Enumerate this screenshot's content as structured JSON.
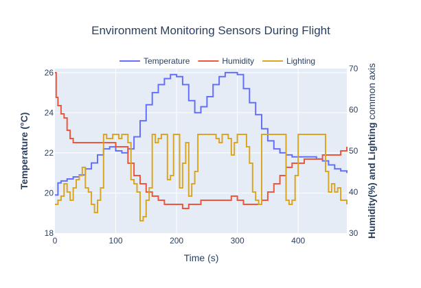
{
  "chart_data": {
    "type": "line",
    "title": "Environment Monitoring Sensors During Flight",
    "xlabel": "Time (s)",
    "ylabel_left": "Temperature (°C)",
    "ylabel_right_bold": "Humidity(%) and Lighting",
    "ylabel_right_normal": " common axis",
    "xlim": [
      0,
      480
    ],
    "ylim_left": [
      18,
      26.2
    ],
    "ylim_right": [
      30,
      70
    ],
    "x_ticks": [
      0,
      100,
      200,
      300,
      400
    ],
    "y_left_ticks": [
      18,
      20,
      22,
      24,
      26
    ],
    "y_right_ticks": [
      30,
      40,
      50,
      60,
      70
    ],
    "grid": true,
    "legend_position": "top",
    "series": [
      {
        "name": "Temperature",
        "axis": "left",
        "color": "#636efa",
        "x": [
          0,
          5,
          10,
          20,
          30,
          40,
          50,
          60,
          70,
          80,
          90,
          100,
          110,
          120,
          130,
          140,
          150,
          160,
          170,
          180,
          190,
          200,
          210,
          220,
          230,
          240,
          250,
          260,
          270,
          280,
          290,
          300,
          310,
          320,
          330,
          340,
          350,
          360,
          370,
          380,
          390,
          400,
          410,
          420,
          430,
          440,
          450,
          460,
          470,
          480
        ],
        "y": [
          19.9,
          20.5,
          20.6,
          20.7,
          20.8,
          20.9,
          21.2,
          21.5,
          21.9,
          22.2,
          22.3,
          22.1,
          22.0,
          22.2,
          22.8,
          23.6,
          24.4,
          25.0,
          25.4,
          25.7,
          25.9,
          25.8,
          25.4,
          24.6,
          24.0,
          24.3,
          24.8,
          25.4,
          25.8,
          26.0,
          26.0,
          25.9,
          25.2,
          24.5,
          23.9,
          23.2,
          22.6,
          22.2,
          22.0,
          21.9,
          21.8,
          21.8,
          21.8,
          21.8,
          21.7,
          21.6,
          21.4,
          21.2,
          21.1,
          21.0
        ]
      },
      {
        "name": "Humidity",
        "axis": "right",
        "color": "#ef553b",
        "x": [
          0,
          2,
          5,
          10,
          15,
          20,
          25,
          30,
          40,
          50,
          60,
          70,
          80,
          90,
          100,
          110,
          120,
          130,
          140,
          150,
          160,
          170,
          180,
          190,
          200,
          210,
          220,
          230,
          240,
          250,
          260,
          270,
          280,
          290,
          300,
          310,
          320,
          330,
          340,
          350,
          360,
          370,
          380,
          390,
          400,
          410,
          420,
          430,
          440,
          450,
          460,
          470,
          480
        ],
        "y": [
          69,
          63,
          61,
          59,
          58,
          55,
          53,
          52,
          52,
          52,
          52,
          52,
          52,
          52,
          51,
          51,
          47,
          44,
          42,
          40,
          39,
          38,
          37,
          37,
          37,
          36,
          37,
          37,
          38,
          38,
          38,
          38,
          38,
          39,
          38,
          37,
          37,
          37,
          38,
          40,
          42,
          44,
          46,
          47,
          47,
          48,
          48,
          48,
          49,
          49,
          49,
          50,
          51
        ]
      },
      {
        "name": "Lighting",
        "axis": "right",
        "color": "#daa520",
        "x": [
          0,
          5,
          10,
          15,
          20,
          25,
          30,
          35,
          40,
          45,
          50,
          55,
          60,
          65,
          70,
          75,
          80,
          85,
          90,
          95,
          100,
          105,
          110,
          115,
          120,
          125,
          130,
          135,
          140,
          145,
          150,
          155,
          160,
          165,
          170,
          175,
          180,
          185,
          190,
          195,
          200,
          205,
          210,
          215,
          220,
          225,
          230,
          235,
          240,
          245,
          250,
          255,
          260,
          265,
          270,
          275,
          280,
          285,
          290,
          295,
          300,
          305,
          310,
          315,
          320,
          325,
          330,
          335,
          340,
          345,
          350,
          355,
          360,
          365,
          370,
          375,
          380,
          385,
          390,
          395,
          400,
          405,
          410,
          415,
          420,
          425,
          430,
          435,
          440,
          445,
          450,
          455,
          460,
          465,
          470,
          475,
          480
        ],
        "y": [
          37,
          38,
          39,
          42,
          40,
          38,
          41,
          43,
          44,
          46,
          41,
          40,
          37,
          35,
          38,
          41,
          54,
          53,
          53,
          54,
          54,
          53,
          54,
          54,
          52,
          43,
          42,
          40,
          33,
          34,
          38,
          41,
          54,
          52,
          53,
          54,
          54,
          43,
          44,
          54,
          54,
          41,
          47,
          52,
          39,
          42,
          45,
          54,
          54,
          54,
          54,
          54,
          54,
          53,
          52,
          54,
          54,
          53,
          49,
          52,
          54,
          54,
          54,
          51,
          47,
          40,
          38,
          37,
          54,
          54,
          54,
          54,
          54,
          54,
          54,
          54,
          38,
          37,
          38,
          44,
          54,
          54,
          54,
          54,
          54,
          54,
          54,
          54,
          54,
          45,
          40,
          42,
          40,
          41,
          38,
          38,
          37
        ]
      }
    ]
  }
}
